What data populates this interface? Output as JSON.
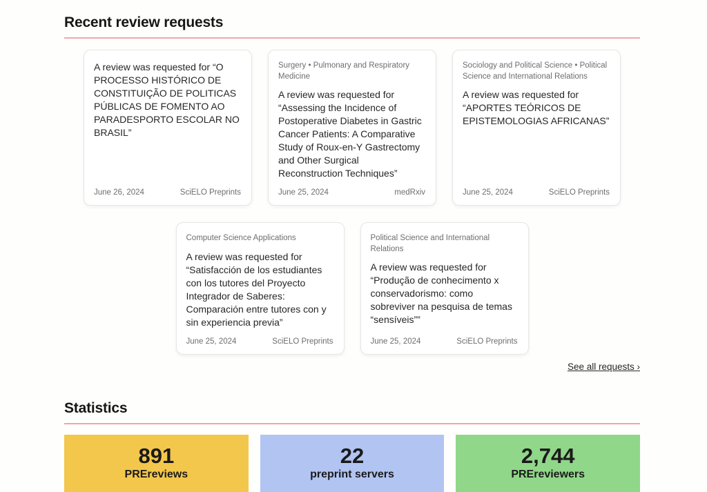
{
  "requests_section": {
    "title": "Recent review requests",
    "see_all_label": "See all requests ›",
    "cards": [
      {
        "topics": "",
        "text": "A review was requested for “O PROCESSO HISTÓRICO DE CONSTITUIÇÃO DE POLITICAS PÚBLICAS DE FOMENTO AO PARADESPORTO ESCOLAR NO BRASIL”",
        "date": "June 26, 2024",
        "server": "SciELO Preprints"
      },
      {
        "topics": "Surgery  •  Pulmonary and Respiratory Medicine",
        "text": "A review was requested for “Assessing the Incidence of Postoperative Diabetes in Gastric Cancer Patients: A Comparative Study of Roux-en-Y Gastrectomy and Other Surgical Reconstruction Techniques”",
        "date": "June 25, 2024",
        "server": "medRxiv"
      },
      {
        "topics": "Sociology and Political Science  •  Political Science and International Relations",
        "text": "A review was requested for “APORTES TEÓRICOS DE EPISTEMOLOGIAS AFRICANAS”",
        "date": "June 25, 2024",
        "server": "SciELO Preprints"
      },
      {
        "topics": "Computer Science Applications",
        "text": "A review was requested for “Satisfacción de los estudiantes con los tutores del Proyecto Integrador de Saberes: Comparación entre tutores con y sin experiencia previa”",
        "date": "June 25, 2024",
        "server": "SciELO Preprints"
      },
      {
        "topics": "Political Science and International Relations",
        "text": "A review was requested for “Produção de conhecimento x conservadorismo: como sobreviver na pesquisa de temas “sensíveis””",
        "date": "June 25, 2024",
        "server": "SciELO Preprints"
      }
    ]
  },
  "statistics_section": {
    "title": "Statistics",
    "stats": [
      {
        "value": "891",
        "label": "PREreviews",
        "color": "#f3c74b"
      },
      {
        "value": "22",
        "label": "preprint servers",
        "color": "#b1c4f2"
      },
      {
        "value": "2,744",
        "label": "PREreviewers",
        "color": "#90d789"
      }
    ]
  },
  "colors": {
    "heading_rule": "#f2a6a6",
    "page_background": "#fefefd",
    "card_border": "#e8e6e3",
    "muted_text": "#6d6d6d"
  }
}
